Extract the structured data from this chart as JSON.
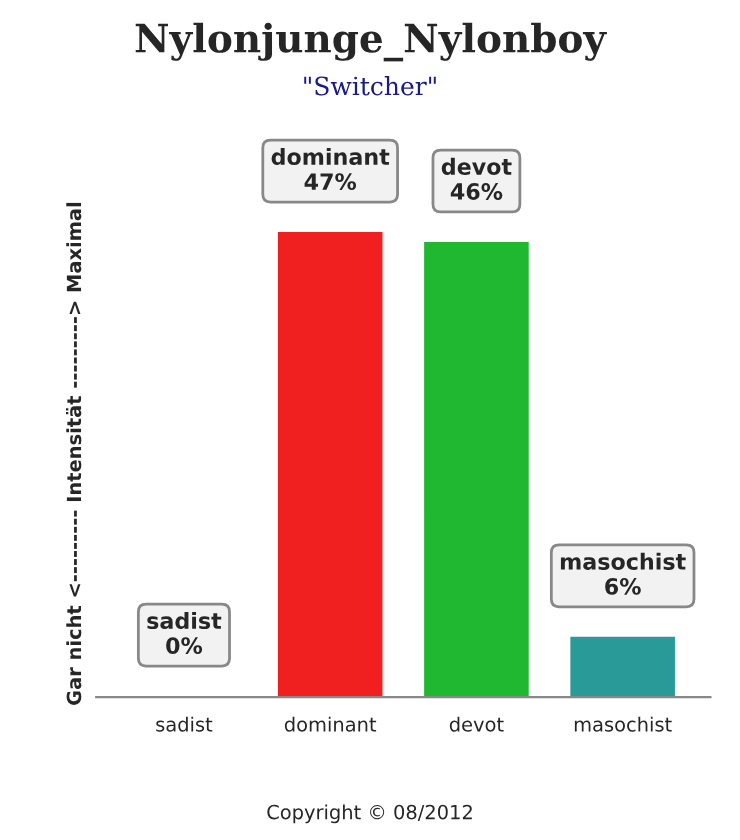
{
  "chart_data": {
    "type": "bar",
    "title": "Nylonjunge_Nylonboy",
    "subtitle": "\"Switcher\"",
    "ylabel": "Gar nicht <--------- Intensität ---------> Maximal",
    "categories": [
      "sadist",
      "dominant",
      "devot",
      "masochist"
    ],
    "values": [
      0,
      47,
      46,
      6
    ],
    "value_labels": [
      "0%",
      "47%",
      "46%",
      "6%"
    ],
    "colors": [
      "#9a9a9a",
      "#f02020",
      "#20b830",
      "#2a9a98"
    ],
    "tick_labels": "x",
    "grid": false,
    "annotations": [
      "Copyright © 08/2012"
    ]
  }
}
